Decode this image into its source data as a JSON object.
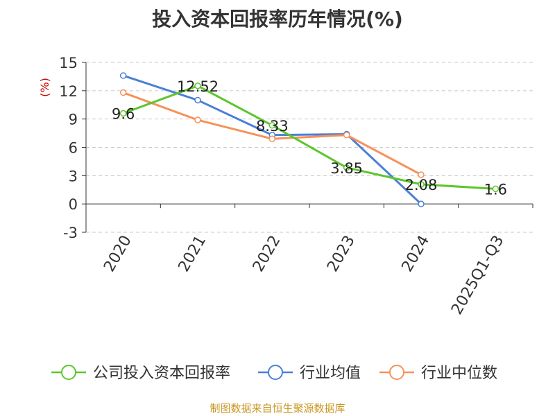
{
  "chart_data": {
    "type": "line",
    "title": "投入资本回报率历年情况(%)",
    "ylabel": "(%)",
    "xlabel": "",
    "categories": [
      "2020",
      "2021",
      "2022",
      "2023",
      "2024",
      "2025Q1-Q3"
    ],
    "ylim": [
      -3,
      15
    ],
    "yticks": [
      -3,
      0,
      3,
      6,
      9,
      12,
      15
    ],
    "grid": true,
    "legend_position": "bottom",
    "series": [
      {
        "name": "公司投入资本回报率",
        "color": "#5cc62c",
        "values": [
          9.6,
          12.52,
          8.33,
          3.85,
          2.08,
          1.6
        ],
        "labels": [
          "9.6",
          "12.52",
          "8.33",
          "3.85",
          "2.08",
          "1.6"
        ]
      },
      {
        "name": "行业均值",
        "color": "#4a7fd8",
        "values": [
          13.6,
          11.0,
          7.3,
          7.4,
          0.0,
          null
        ]
      },
      {
        "name": "行业中位数",
        "color": "#f5925a",
        "values": [
          11.8,
          8.9,
          6.9,
          7.3,
          3.1,
          null
        ]
      }
    ]
  },
  "source": "制图数据来自恒生聚源数据库"
}
